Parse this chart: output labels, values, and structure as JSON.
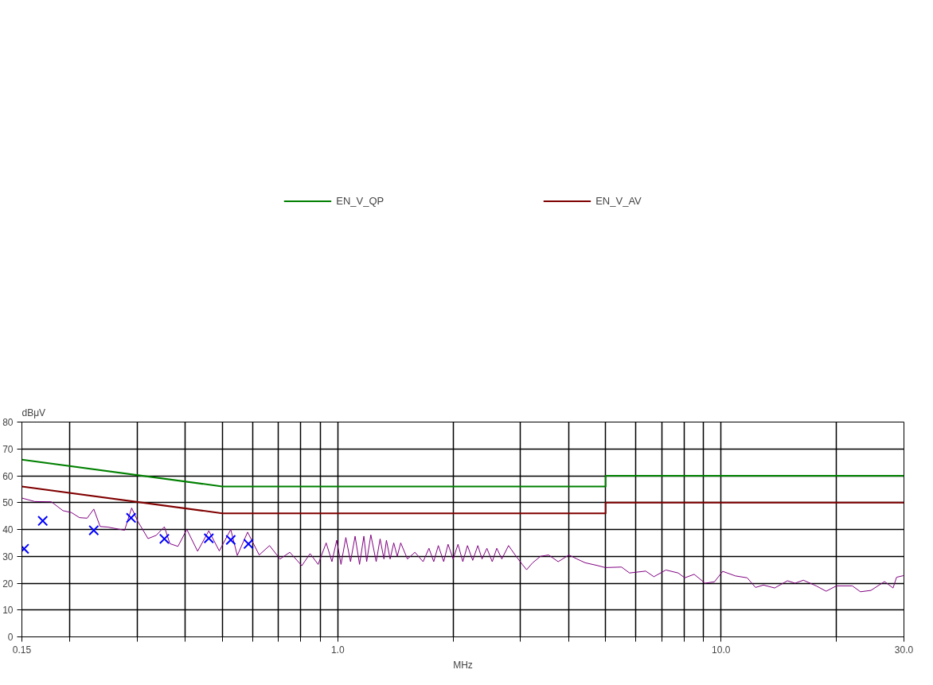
{
  "chart_data": {
    "type": "line",
    "xlabel": "MHz",
    "ylabel": "dBμV",
    "log": "x",
    "grid": true,
    "legend": "top",
    "line_style": "solid",
    "xlim": [
      0.15,
      30
    ],
    "ylim": [
      0,
      80
    ],
    "xticks": [
      0.15,
      {
        "value": 0.2,
        "label": null
      },
      {
        "value": 0.3,
        "label": null
      },
      {
        "value": 0.4,
        "label": null
      },
      {
        "value": 0.5,
        "label": null
      },
      {
        "value": 0.6,
        "label": null
      },
      {
        "value": 0.7,
        "label": null
      },
      {
        "value": 0.8,
        "label": null
      },
      {
        "value": 0.9,
        "label": null
      },
      {
        "value": 1,
        "label": "1.0"
      },
      {
        "value": 2,
        "label": null
      },
      {
        "value": 3,
        "label": null
      },
      {
        "value": 4,
        "label": null
      },
      {
        "value": 5,
        "label": null
      },
      {
        "value": 6,
        "label": null
      },
      {
        "value": 7,
        "label": null
      },
      {
        "value": 8,
        "label": null
      },
      {
        "value": 9,
        "label": null
      },
      {
        "value": 10,
        "label": "10.0"
      },
      {
        "value": 20,
        "label": null
      },
      {
        "value": 30,
        "label": "30.0"
      }
    ],
    "yticks": [
      0,
      10,
      20,
      30,
      40,
      50,
      60,
      70,
      80
    ],
    "series": [
      {
        "name": "EN_V_QP",
        "color": "#008000",
        "x": [
          0.15,
          0.5,
          5,
          5,
          30
        ],
        "values": [
          66,
          56,
          56,
          60,
          60
        ]
      },
      {
        "name": "EN_V_AV",
        "color": "#800000",
        "x": [
          0.15,
          0.5,
          5,
          5,
          30
        ],
        "values": [
          56,
          46,
          46,
          50,
          50
        ]
      },
      {
        "color": "#800080",
        "x": [
          0.15,
          0.162,
          0.179,
          0.192,
          0.202,
          0.212,
          0.222,
          0.231,
          0.24,
          0.251,
          0.278,
          0.29,
          0.301,
          0.32,
          0.336,
          0.353,
          0.365,
          0.383,
          0.404,
          0.431,
          0.461,
          0.491,
          0.526,
          0.547,
          0.582,
          0.624,
          0.664,
          0.707,
          0.75,
          0.806,
          0.847,
          0.889,
          0.933,
          0.966,
          0.994,
          1.02,
          1.05,
          1.08,
          1.11,
          1.14,
          1.17,
          1.19,
          1.22,
          1.26,
          1.29,
          1.32,
          1.34,
          1.37,
          1.4,
          1.43,
          1.46,
          1.52,
          1.59,
          1.67,
          1.73,
          1.78,
          1.83,
          1.89,
          1.94,
          2.0,
          2.06,
          2.12,
          2.18,
          2.25,
          2.32,
          2.38,
          2.45,
          2.53,
          2.6,
          2.68,
          2.79,
          2.92,
          3.03,
          3.11,
          3.22,
          3.38,
          3.55,
          3.76,
          4.01,
          4.21,
          4.42,
          4.75,
          4.99,
          5.5,
          5.77,
          6.36,
          6.68,
          7.18,
          7.73,
          8.04,
          8.51,
          9.08,
          9.61,
          10.1,
          10.9,
          11.7,
          12.3,
          12.9,
          13.8,
          14.9,
          15.6,
          16.4,
          17.7,
          18.8,
          20.0,
          22.0,
          23.1,
          24.6,
          26.7,
          28.1,
          28.7,
          29.9
        ],
        "values": [
          51.7,
          50.4,
          50.3,
          47,
          46.3,
          44.4,
          44.2,
          47.6,
          41.1,
          40.9,
          39.7,
          48,
          43,
          36.6,
          37.8,
          41,
          34.7,
          33.7,
          40,
          31.9,
          39.5,
          32,
          40,
          30.3,
          39,
          30.5,
          34,
          29,
          31.5,
          26.5,
          31,
          27,
          35,
          28,
          36,
          27,
          37,
          28,
          37.5,
          27,
          37.5,
          28,
          38,
          28,
          36.5,
          29,
          36,
          29,
          35,
          30,
          35,
          29,
          31.5,
          28,
          33,
          28,
          34,
          28,
          34.5,
          29,
          34.5,
          28,
          34,
          28.5,
          34,
          29,
          33,
          28,
          33,
          29,
          34,
          30,
          27,
          25,
          27.5,
          30,
          30.5,
          28,
          30.5,
          29,
          27.6,
          26.6,
          25.8,
          26,
          23.8,
          24.5,
          22.4,
          24.9,
          23.8,
          22,
          23.3,
          20,
          20.5,
          24.4,
          22.7,
          22,
          18.4,
          19.3,
          18.2,
          20.9,
          20,
          21.1,
          19,
          17,
          19,
          19,
          16.8,
          17.3,
          20.6,
          18.2,
          22.2,
          22.8
        ]
      },
      {
        "type": "scatter",
        "marker": "cross",
        "color": "#0000ff",
        "x": [
          0.152,
          0.17,
          0.231,
          0.289,
          0.353,
          0.461,
          0.526,
          0.585
        ],
        "values": [
          32.8,
          43.2,
          39.7,
          44.3,
          36.5,
          36.7,
          36.1,
          34.6
        ]
      }
    ]
  }
}
